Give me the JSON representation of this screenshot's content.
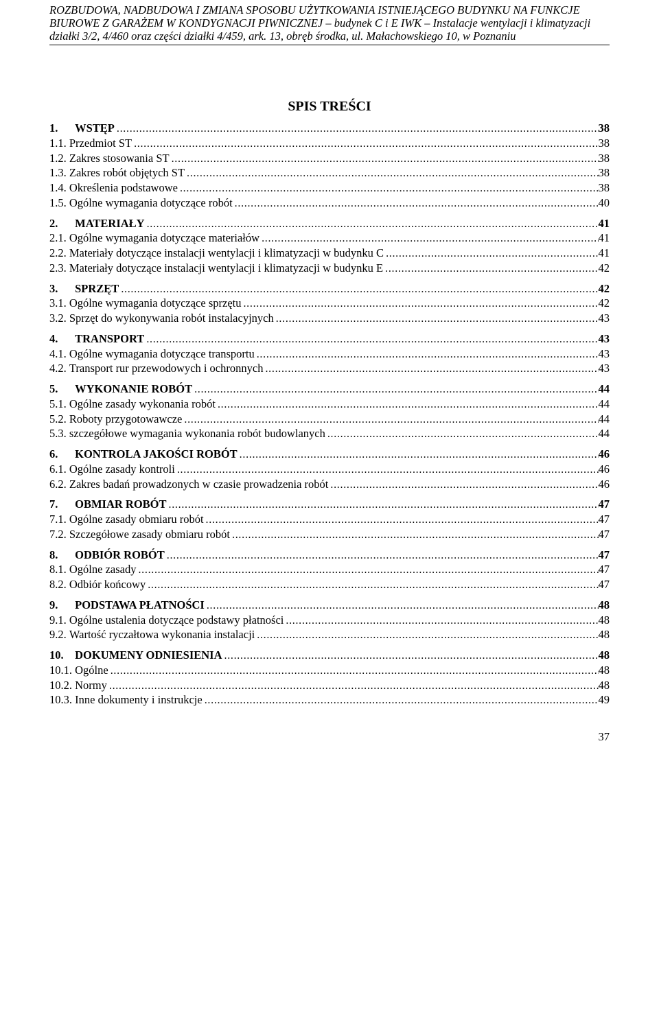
{
  "header": {
    "line1": "ROZBUDOWA, NADBUDOWA I ZMIANA SPOSOBU UŻYTKOWANIA ISTNIEJĄCEGO BUDYNKU NA FUNKCJE",
    "line2": "BIUROWE Z GARAŻEM W KONDYGNACJI PIWNICZNEJ – budynek C i E  IWK – Instalacje wentylacji i klimatyzacji",
    "line3": "działki 3/2, 4/460 oraz części działki 4/459, ark. 13, obręb środka,  ul.  Małachowskiego 10, w Poznaniu"
  },
  "toc_title": "SPIS TREŚCI",
  "toc": [
    {
      "type": "h",
      "num": "1.",
      "pad": "      ",
      "label": "WSTĘP",
      "page": "38"
    },
    {
      "type": "s",
      "num": "1.1.",
      "label": "Przedmiot ST",
      "page": "38"
    },
    {
      "type": "s",
      "num": "1.2.",
      "label": "Zakres stosowania ST",
      "page": "38"
    },
    {
      "type": "s",
      "num": "1.3.",
      "label": "Zakres robót objętych ST",
      "page": "38"
    },
    {
      "type": "s",
      "num": "1.4.",
      "label": "Określenia podstawowe",
      "page": "38"
    },
    {
      "type": "s",
      "num": "1.5.",
      "label": "Ogólne wymagania dotyczące robót",
      "page": "40"
    },
    {
      "type": "h",
      "num": "2.",
      "pad": "      ",
      "label": "MATERIAŁY",
      "page": "41"
    },
    {
      "type": "s",
      "num": "2.1.",
      "label": "Ogólne wymagania dotyczące materiałów",
      "page": "41"
    },
    {
      "type": "s",
      "num": "2.2.",
      "label": "Materiały dotyczące instalacji wentylacji i klimatyzacji w budynku C",
      "page": "41"
    },
    {
      "type": "s",
      "num": "2.3.",
      "label": "Materiały dotyczące instalacji wentylacji i klimatyzacji w budynku E",
      "page": "42"
    },
    {
      "type": "h",
      "num": "3.",
      "pad": "      ",
      "label": "SPRZĘT",
      "page": "42"
    },
    {
      "type": "s",
      "num": "3.1.",
      "label": "Ogólne wymagania dotyczące sprzętu",
      "page": "42"
    },
    {
      "type": "s",
      "num": "3.2.",
      "label": "Sprzęt do wykonywania robót instalacyjnych",
      "page": "43"
    },
    {
      "type": "h",
      "num": "4.",
      "pad": "      ",
      "label": "TRANSPORT",
      "page": "43"
    },
    {
      "type": "s",
      "num": "4.1.",
      "label": "Ogólne wymagania dotyczące transportu",
      "page": "43"
    },
    {
      "type": "s",
      "num": "4.2.",
      "label": "Transport rur przewodowych i ochronnych",
      "page": "43"
    },
    {
      "type": "h",
      "num": "5.",
      "pad": "      ",
      "label": "WYKONANIE ROBÓT",
      "page": "44"
    },
    {
      "type": "s",
      "num": "5.1.",
      "label": "Ogólne zasady wykonania robót",
      "page": "44"
    },
    {
      "type": "s",
      "num": "5.2.",
      "label": "Roboty przygotowawcze",
      "page": "44"
    },
    {
      "type": "s",
      "num": "5.3.",
      "label": "szczegółowe wymagania wykonania robót budowlanych",
      "page": "44"
    },
    {
      "type": "h",
      "num": "6.",
      "pad": "      ",
      "label": "KONTROLA JAKOŚCI ROBÓT",
      "page": "46"
    },
    {
      "type": "s",
      "num": "6.1.",
      "label": "Ogólne zasady kontroli",
      "page": "46"
    },
    {
      "type": "s",
      "num": "6.2.",
      "label": "Zakres badań prowadzonych w czasie prowadzenia robót",
      "page": "46"
    },
    {
      "type": "h",
      "num": "7.",
      "pad": "      ",
      "label": "OBMIAR ROBÓT",
      "page": "47"
    },
    {
      "type": "s",
      "num": "7.1.",
      "label": "Ogólne zasady obmiaru robót",
      "page": "47"
    },
    {
      "type": "s",
      "num": "7.2.",
      "label": "Szczegółowe zasady obmiaru robót",
      "page": "47"
    },
    {
      "type": "h",
      "num": "8.",
      "pad": "      ",
      "label": "ODBIÓR ROBÓT",
      "page": "47"
    },
    {
      "type": "s",
      "num": "8.1.",
      "label": "Ogólne zasady",
      "page": "47"
    },
    {
      "type": "s",
      "num": "8.2.",
      "label": "Odbiór końcowy",
      "page": "47"
    },
    {
      "type": "h",
      "num": "9.",
      "pad": "      ",
      "label": "PODSTAWA PŁATNOŚCI",
      "page": "48"
    },
    {
      "type": "s",
      "num": "9.1.",
      "label": "Ogólne ustalenia dotyczące podstawy płatności",
      "page": "48"
    },
    {
      "type": "s",
      "num": "9.2.",
      "label": "Wartość ryczałtowa wykonania instalacji",
      "page": "48"
    },
    {
      "type": "h",
      "num": "10.",
      "pad": "    ",
      "label": "DOKUMENY ODNIESIENIA",
      "page": "48"
    },
    {
      "type": "s",
      "num": "10.1.",
      "label": "Ogólne",
      "page": "48"
    },
    {
      "type": "s",
      "num": "10.2.",
      "label": "Normy",
      "page": "48"
    },
    {
      "type": "s",
      "num": "10.3.",
      "label": "Inne dokumenty i instrukcje",
      "page": "49"
    }
  ],
  "page_number": "37"
}
